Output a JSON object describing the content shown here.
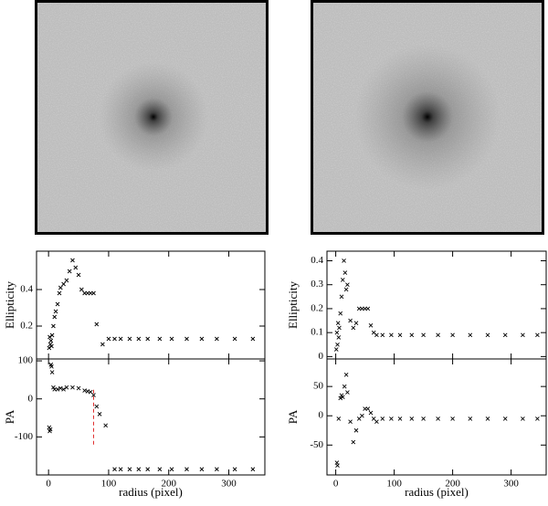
{
  "chart_data": [
    {
      "type": "scatter",
      "ylabel": "Ellipticity",
      "color": "#000000",
      "x": [
        1,
        2,
        3,
        4,
        5,
        6,
        8,
        10,
        12,
        15,
        18,
        20,
        25,
        30,
        35,
        40,
        45,
        50,
        55,
        60,
        65,
        70,
        75,
        80,
        90,
        100,
        110,
        120,
        135,
        150,
        165,
        185,
        205,
        230,
        255,
        280,
        310,
        340
      ],
      "values": [
        0.08,
        0.14,
        0.1,
        0.12,
        0.09,
        0.15,
        0.2,
        0.25,
        0.28,
        0.32,
        0.38,
        0.41,
        0.43,
        0.45,
        0.5,
        0.56,
        0.52,
        0.48,
        0.4,
        0.38,
        0.38,
        0.38,
        0.38,
        0.21,
        0.1,
        0.13,
        0.13,
        0.13,
        0.13,
        0.13,
        0.13,
        0.13,
        0.13,
        0.13,
        0.13,
        0.13,
        0.13,
        0.13
      ],
      "xlim": [
        -20,
        360
      ],
      "ylim": [
        0.02,
        0.61
      ],
      "xticks": [
        0,
        100,
        200,
        300
      ],
      "yticks": [
        0.2,
        0.4
      ]
    },
    {
      "type": "scatter",
      "ylabel": "PA",
      "xlabel": "radius (pixel)",
      "color": "#000000",
      "x": [
        1,
        2,
        3,
        4,
        5,
        6,
        8,
        10,
        15,
        20,
        25,
        30,
        40,
        50,
        60,
        65,
        70,
        75,
        80,
        85,
        95,
        110,
        120,
        135,
        150,
        165,
        185,
        205,
        230,
        255,
        280,
        310,
        340
      ],
      "values": [
        -75,
        -85,
        -80,
        90,
        85,
        70,
        30,
        25,
        25,
        28,
        25,
        30,
        30,
        28,
        22,
        20,
        18,
        10,
        -20,
        -40,
        -70,
        -185,
        -185,
        -185,
        -185,
        -185,
        -185,
        -185,
        -185,
        -185,
        -185,
        -185,
        -185
      ],
      "xlim": [
        -20,
        360
      ],
      "ylim": [
        -200,
        105
      ],
      "xticks": [
        0,
        100,
        200,
        300
      ],
      "yticks": [
        100,
        0,
        -100
      ],
      "vline": {
        "x": 75,
        "y": [
          -120,
          25
        ],
        "color": "#e03030"
      }
    },
    {
      "type": "scatter",
      "ylabel": "Ellipticity",
      "color": "#000000",
      "x": [
        1,
        2,
        3,
        4,
        5,
        6,
        8,
        10,
        12,
        14,
        16,
        18,
        20,
        25,
        30,
        35,
        40,
        45,
        50,
        55,
        60,
        65,
        70,
        80,
        95,
        110,
        130,
        150,
        175,
        200,
        230,
        260,
        290,
        320,
        345
      ],
      "values": [
        0.03,
        0.1,
        0.05,
        0.14,
        0.08,
        0.12,
        0.18,
        0.25,
        0.32,
        0.4,
        0.35,
        0.28,
        0.3,
        0.15,
        0.12,
        0.14,
        0.2,
        0.2,
        0.2,
        0.2,
        0.13,
        0.1,
        0.09,
        0.09,
        0.09,
        0.09,
        0.09,
        0.09,
        0.09,
        0.09,
        0.09,
        0.09,
        0.09,
        0.09,
        0.09
      ],
      "xlim": [
        -15,
        360
      ],
      "ylim": [
        -0.01,
        0.44
      ],
      "xticks": [
        0,
        100,
        200,
        300
      ],
      "yticks": [
        0,
        0.1,
        0.2,
        0.3,
        0.4
      ]
    },
    {
      "type": "scatter",
      "ylabel": "PA",
      "xlabel": "radius (pixel)",
      "color": "#000000",
      "x": [
        2,
        3,
        5,
        8,
        10,
        12,
        15,
        18,
        20,
        25,
        30,
        35,
        40,
        45,
        50,
        55,
        60,
        65,
        70,
        80,
        95,
        110,
        130,
        150,
        175,
        200,
        230,
        260,
        290,
        320,
        345
      ],
      "values": [
        -80,
        -85,
        -5,
        30,
        35,
        32,
        50,
        70,
        40,
        -10,
        -45,
        -25,
        -5,
        0,
        12,
        12,
        5,
        -5,
        -10,
        -5,
        -5,
        -5,
        -5,
        -5,
        -5,
        -5,
        -5,
        -5,
        -5,
        -5,
        -5
      ],
      "xlim": [
        -15,
        360
      ],
      "ylim": [
        -101,
        97
      ],
      "xticks": [
        0,
        100,
        200,
        300
      ],
      "yticks": [
        50,
        0,
        -50
      ]
    }
  ]
}
